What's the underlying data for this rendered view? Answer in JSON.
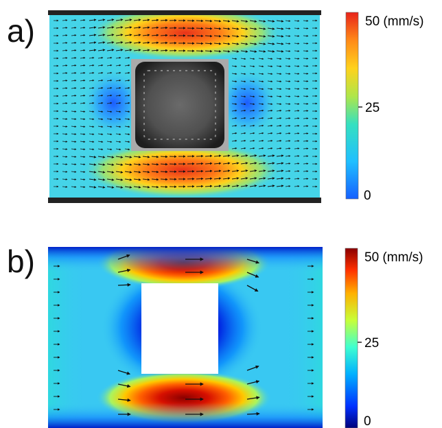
{
  "panels": [
    {
      "label": "a)",
      "colorbar": {
        "max_label": "50 (mm/s)",
        "mid_label": "25",
        "min_label": "0",
        "style": "jet-like",
        "colors": [
          "#1560ff",
          "#1fbfff",
          "#35e0c0",
          "#aee64a",
          "#ffd21c",
          "#ff8a18",
          "#e8231a"
        ]
      },
      "field": {
        "style": "measured (PIV overlay)",
        "background": "#45d4e8",
        "obstacle": "dark square cylinder image",
        "vector_arrows": "dense black arrows",
        "wall_lines": "dark channel walls top and bottom"
      }
    },
    {
      "label": "b)",
      "colorbar": {
        "max_label": "50 (mm/s)",
        "mid_label": "25",
        "min_label": "0",
        "style": "jet",
        "colors": [
          "#00007a",
          "#0030ff",
          "#00b0ff",
          "#3fffd0",
          "#c8ff38",
          "#ffb000",
          "#ff3000",
          "#8a0000"
        ]
      },
      "field": {
        "style": "simulated",
        "background": "#39c8f2",
        "obstacle": "white square cylinder",
        "vector_arrows": "sparse black arrows"
      }
    }
  ]
}
